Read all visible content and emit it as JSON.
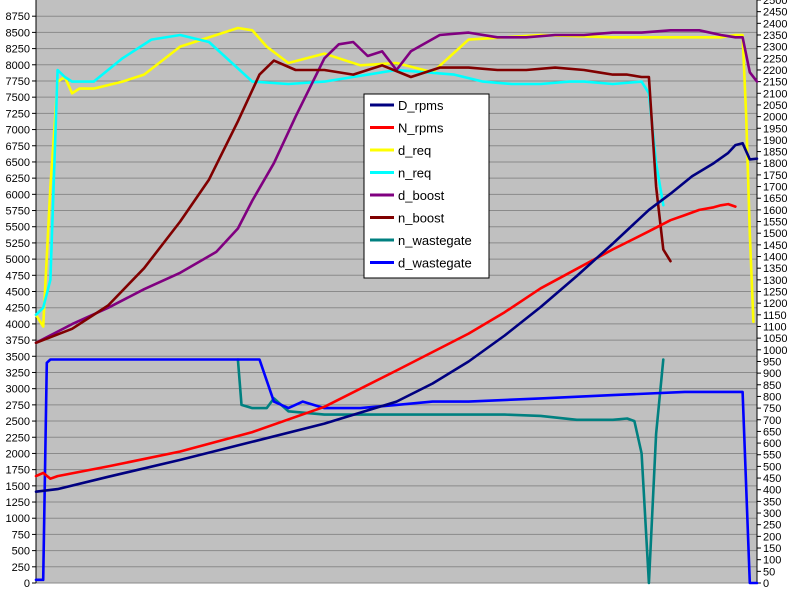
{
  "chart_data": {
    "type": "line",
    "title": "",
    "xlabel": "",
    "ylabel": "",
    "ylabel_right": "",
    "grid": true,
    "legend_position": "upper-middle",
    "y_left": {
      "min": 0,
      "max": 9000,
      "step": 250
    },
    "y_right": {
      "min": 0,
      "max": 2500,
      "step": 50
    },
    "y_left_ticks": [
      "0",
      "250",
      "500",
      "750",
      "1000",
      "1250",
      "1500",
      "1750",
      "2000",
      "2250",
      "2500",
      "2750",
      "3000",
      "3250",
      "3500",
      "3750",
      "4000",
      "4250",
      "4500",
      "4750",
      "5000",
      "5250",
      "5500",
      "5750",
      "6000",
      "6250",
      "6500",
      "6750",
      "7000",
      "7250",
      "7500",
      "7750",
      "8000",
      "8250",
      "8500",
      "8750"
    ],
    "y_right_ticks": [
      "0",
      "50",
      "100",
      "150",
      "200",
      "250",
      "300",
      "350",
      "400",
      "450",
      "500",
      "550",
      "600",
      "650",
      "700",
      "750",
      "800",
      "850",
      "900",
      "950",
      "1000",
      "1050",
      "1100",
      "1150",
      "1200",
      "1250",
      "1300",
      "1350",
      "1400",
      "1450",
      "1500",
      "1550",
      "1600",
      "1650",
      "1700",
      "1750",
      "1800",
      "1850",
      "1900",
      "1950",
      "2000",
      "2050",
      "2100",
      "2150",
      "2200",
      "2250",
      "2300",
      "2350",
      "2400",
      "2450",
      "2500"
    ],
    "x_range": [
      0,
      100
    ],
    "series": [
      {
        "name": "D_rpms",
        "color": "#000080",
        "axis": "left",
        "x": [
          0,
          3,
          10,
          20,
          30,
          40,
          50,
          55,
          60,
          65,
          70,
          75,
          80,
          85,
          88,
          91,
          94,
          96,
          97,
          98,
          99,
          100
        ],
        "y": [
          1410,
          1450,
          1640,
          1900,
          2180,
          2460,
          2800,
          3080,
          3420,
          3820,
          4260,
          4740,
          5240,
          5760,
          6010,
          6280,
          6480,
          6640,
          6760,
          6790,
          6540,
          6550
        ]
      },
      {
        "name": "N_rpms",
        "color": "#ff0000",
        "axis": "left",
        "x": [
          0,
          1,
          2,
          3,
          10,
          20,
          30,
          40,
          50,
          60,
          65,
          70,
          75,
          80,
          85,
          88,
          90,
          92,
          94,
          95,
          96,
          97
        ],
        "y": [
          1650,
          1700,
          1610,
          1650,
          1800,
          2030,
          2330,
          2720,
          3280,
          3850,
          4180,
          4550,
          4850,
          5150,
          5430,
          5600,
          5680,
          5760,
          5800,
          5830,
          5850,
          5810
        ]
      },
      {
        "name": "d_req",
        "color": "#ffff00",
        "axis": "right",
        "x": [
          0,
          1,
          2,
          3,
          4,
          5,
          6,
          8,
          12,
          15,
          20,
          25,
          28,
          30,
          32,
          35,
          40,
          45,
          50,
          55,
          60,
          70,
          80,
          90,
          95,
          97,
          98,
          98.5,
          99,
          99.5
        ],
        "y": [
          1150,
          1100,
          1700,
          2150,
          2170,
          2100,
          2120,
          2120,
          2150,
          2180,
          2300,
          2350,
          2380,
          2370,
          2300,
          2230,
          2270,
          2220,
          2230,
          2190,
          2330,
          2350,
          2340,
          2340,
          2340,
          2350,
          2350,
          2000,
          1500,
          1120
        ]
      },
      {
        "name": "n_req",
        "color": "#00ffff",
        "axis": "right",
        "x": [
          0,
          1,
          2,
          3,
          4,
          5,
          8,
          12,
          16,
          20,
          24,
          30,
          35,
          40,
          50,
          58,
          62,
          66,
          70,
          74,
          76,
          80,
          84,
          85,
          86,
          87
        ],
        "y": [
          1150,
          1180,
          1300,
          2200,
          2170,
          2150,
          2150,
          2250,
          2330,
          2350,
          2320,
          2150,
          2140,
          2150,
          2200,
          2180,
          2150,
          2140,
          2140,
          2150,
          2150,
          2140,
          2150,
          2100,
          1800,
          1620
        ]
      },
      {
        "name": "d_boost",
        "color": "#800080",
        "axis": "right",
        "x": [
          0,
          5,
          10,
          15,
          20,
          25,
          28,
          30,
          33,
          36,
          40,
          42,
          44,
          46,
          48,
          50,
          52,
          56,
          60,
          64,
          68,
          72,
          76,
          80,
          84,
          88,
          92,
          95,
          97,
          98,
          99,
          100
        ],
        "y": [
          1030,
          1110,
          1180,
          1260,
          1330,
          1420,
          1520,
          1640,
          1800,
          2000,
          2250,
          2310,
          2320,
          2260,
          2280,
          2200,
          2280,
          2350,
          2360,
          2340,
          2340,
          2350,
          2350,
          2360,
          2360,
          2370,
          2370,
          2350,
          2340,
          2340,
          2190,
          2150
        ]
      },
      {
        "name": "n_boost",
        "color": "#800000",
        "axis": "right",
        "x": [
          0,
          5,
          10,
          15,
          20,
          24,
          28,
          31,
          33,
          36,
          40,
          44,
          48,
          52,
          56,
          60,
          64,
          68,
          72,
          76,
          78,
          80,
          82,
          84,
          85,
          86,
          87,
          88
        ],
        "y": [
          1030,
          1090,
          1190,
          1350,
          1550,
          1730,
          1980,
          2180,
          2240,
          2200,
          2200,
          2180,
          2220,
          2170,
          2210,
          2210,
          2200,
          2200,
          2210,
          2200,
          2190,
          2180,
          2180,
          2170,
          2170,
          1700,
          1430,
          1380
        ]
      },
      {
        "name": "n_wastegate",
        "color": "#008080",
        "axis": "left",
        "x": [
          28,
          28.5,
          30,
          32,
          33,
          35,
          40,
          50,
          60,
          65,
          70,
          75,
          80,
          82,
          83,
          84,
          85,
          86,
          87
        ],
        "y": [
          3450,
          2750,
          2700,
          2700,
          2850,
          2650,
          2600,
          2600,
          2600,
          2600,
          2580,
          2520,
          2520,
          2540,
          2500,
          2000,
          0,
          2300,
          3450
        ]
      },
      {
        "name": "d_wastegate",
        "color": "#0000ff",
        "axis": "left",
        "x": [
          0,
          1,
          1.5,
          2,
          3,
          10,
          20,
          30,
          31,
          33,
          35,
          37,
          40,
          45,
          50,
          55,
          60,
          70,
          80,
          90,
          95,
          97,
          98,
          99,
          100
        ],
        "y": [
          50,
          50,
          3400,
          3450,
          3450,
          3450,
          3450,
          3450,
          3450,
          2800,
          2700,
          2800,
          2700,
          2700,
          2750,
          2800,
          2800,
          2850,
          2900,
          2950,
          2950,
          2950,
          2950,
          0,
          0
        ]
      }
    ]
  }
}
